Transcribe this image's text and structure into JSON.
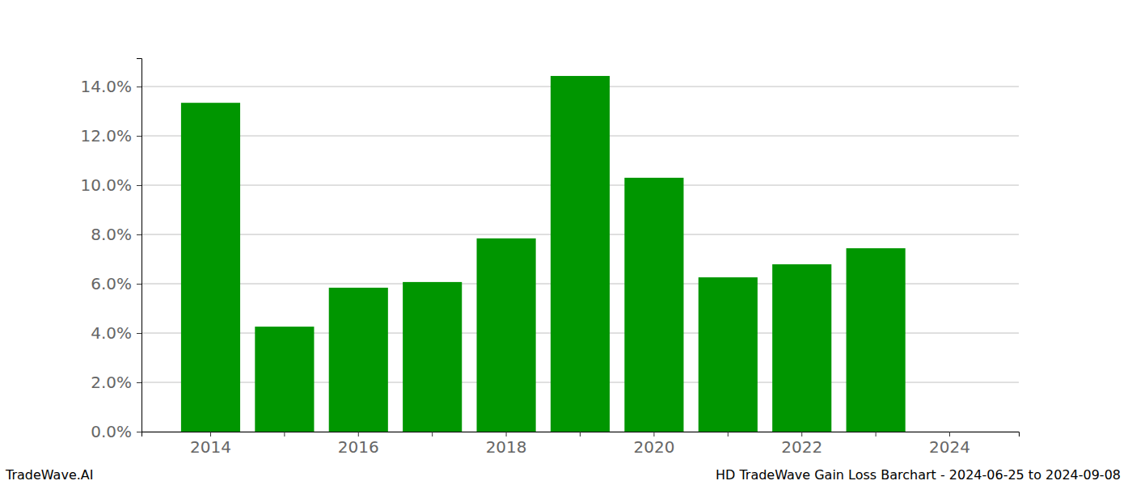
{
  "chart_data": {
    "type": "bar",
    "categories": [
      "2014",
      null,
      "2016",
      null,
      "2018",
      null,
      "2020",
      null,
      "2022",
      null,
      "2024"
    ],
    "values": [
      13.34,
      4.26,
      5.84,
      6.07,
      7.84,
      14.43,
      10.3,
      6.26,
      6.79,
      7.44,
      null
    ],
    "color": "#009600",
    "ylim": [
      0,
      15.15
    ],
    "yticks": [
      {
        "value": 0,
        "label": "0.0%"
      },
      {
        "value": 2,
        "label": "2.0%"
      },
      {
        "value": 4,
        "label": "4.0%"
      },
      {
        "value": 6,
        "label": "6.0%"
      },
      {
        "value": 8,
        "label": "8.0%"
      },
      {
        "value": 10,
        "label": "10.0%"
      },
      {
        "value": 12,
        "label": "12.0%"
      },
      {
        "value": 14,
        "label": "14.0%"
      }
    ],
    "grid": true,
    "annotations": [
      "TradeWave.AI",
      "HD TradeWave Gain Loss Barchart - 2024-06-25 to 2024-09-08"
    ]
  }
}
